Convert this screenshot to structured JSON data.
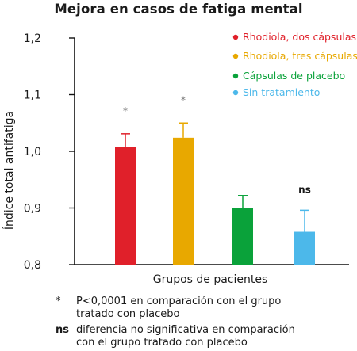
{
  "chart_data": {
    "type": "bar",
    "title": "Mejora en casos de fatiga mental",
    "xlabel": "Grupos de pacientes",
    "ylabel": "Índice total antifatiga",
    "ylim": [
      0.8,
      1.2
    ],
    "yticks": [
      0.8,
      0.9,
      1.0,
      1.1,
      1.2
    ],
    "ytick_labels": [
      "0,8",
      "0,9",
      "1,0",
      "1,1",
      "1,2"
    ],
    "grid": false,
    "legend_position": "top-right",
    "series": [
      {
        "name": "Rhodiola, dos cápsulas",
        "value": 1.008,
        "error": 0.023,
        "color": "#e0202a",
        "significance": "*"
      },
      {
        "name": "Rhodiola, tres cápsulas",
        "value": 1.024,
        "error": 0.026,
        "color": "#e8a800",
        "significance": "*"
      },
      {
        "name": "Cápsulas de placebo",
        "value": 0.9,
        "error": 0.022,
        "color": "#0aa23a",
        "significance": ""
      },
      {
        "name": "Sin tratamiento",
        "value": 0.858,
        "error": 0.038,
        "color": "#4cb8ea",
        "significance": "ns"
      }
    ]
  },
  "footnotes": [
    {
      "symbol": "*",
      "lines": [
        "P<0,0001 en comparación con el grupo",
        "tratado con placebo"
      ]
    },
    {
      "symbol": "ns",
      "lines": [
        "diferencia no significativa en comparación",
        "con el grupo tratado con placebo"
      ]
    }
  ]
}
